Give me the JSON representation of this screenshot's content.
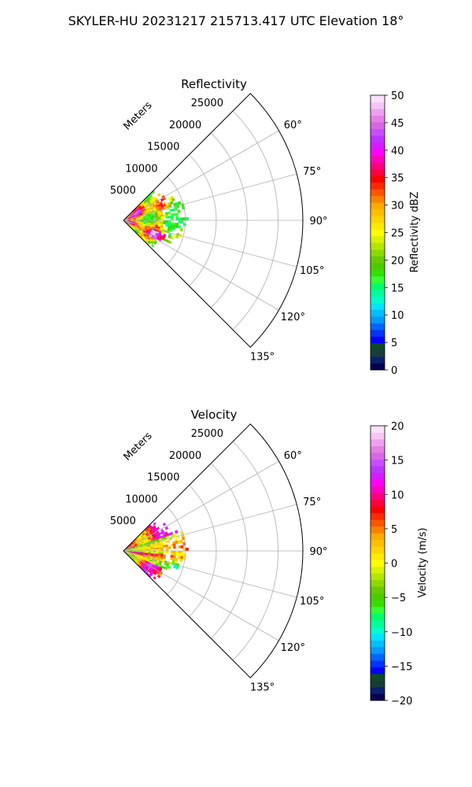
{
  "suptitle": "SKYLER-HU  20231217  215713.417 UTC Elevation 18°",
  "chart_data": [
    {
      "type": "heatmap",
      "title": "Reflectivity",
      "radial_label": "Meters",
      "radial_ticks": [
        "5000",
        "10000",
        "15000",
        "20000",
        "25000"
      ],
      "r_max": 29000,
      "angle_ticks": [
        "60°",
        "75°",
        "90°",
        "105°",
        "120°",
        "135°"
      ],
      "azimuth_range_deg": [
        45,
        135
      ],
      "data_extent_m": 10500,
      "grid": true,
      "colorbar": {
        "label": "Reflectivity dBZ",
        "min": 0,
        "max": 50,
        "ticks": [
          "0",
          "5",
          "10",
          "15",
          "20",
          "25",
          "30",
          "35",
          "40",
          "45",
          "50"
        ],
        "colors": [
          "#05004d",
          "#0a1f6e",
          "#173d3a",
          "#0c4b2a",
          "#0000ff",
          "#0033ff",
          "#0066ff",
          "#0099ff",
          "#00bfff",
          "#00e5ff",
          "#00ffcc",
          "#00ff99",
          "#00ff66",
          "#33ff33",
          "#33e000",
          "#4ccc00",
          "#66cc00",
          "#8cd900",
          "#b3e600",
          "#d9f200",
          "#ffff00",
          "#ffea00",
          "#ffd400",
          "#ffbf00",
          "#ffaa00",
          "#ff8000",
          "#ff5500",
          "#ff2a00",
          "#ff0000",
          "#ff0040",
          "#ff0080",
          "#ff00bf",
          "#ff00ff",
          "#d91aff",
          "#bf33ff",
          "#c94dff",
          "#d966e6",
          "#e680e6",
          "#f0a0f0",
          "#f7c6f7",
          "#fbe0fb"
        ]
      }
    },
    {
      "type": "heatmap",
      "title": "Velocity",
      "radial_label": "Meters",
      "radial_ticks": [
        "5000",
        "10000",
        "15000",
        "20000",
        "25000"
      ],
      "r_max": 29000,
      "angle_ticks": [
        "60°",
        "75°",
        "90°",
        "105°",
        "120°",
        "135°"
      ],
      "azimuth_range_deg": [
        45,
        135
      ],
      "data_extent_m": 10500,
      "grid": true,
      "colorbar": {
        "label": "Velocity (m/s)",
        "min": -20,
        "max": 20,
        "ticks": [
          "−20",
          "−15",
          "−10",
          "−5",
          "0",
          "5",
          "10",
          "15",
          "20"
        ],
        "colors": [
          "#05004d",
          "#0a1f6e",
          "#173d3a",
          "#0c4b2a",
          "#0000ff",
          "#0033ff",
          "#0066ff",
          "#0099ff",
          "#00bfff",
          "#00e5ff",
          "#00ffcc",
          "#00ff99",
          "#00ff66",
          "#33ff33",
          "#33e000",
          "#4ccc00",
          "#66cc00",
          "#8cd900",
          "#b3e600",
          "#d9f200",
          "#ffff00",
          "#ffea00",
          "#ffd400",
          "#ffbf00",
          "#ffaa00",
          "#ff8000",
          "#ff5500",
          "#ff2a00",
          "#ff0000",
          "#ff0040",
          "#ff0080",
          "#ff00bf",
          "#ff00ff",
          "#d91aff",
          "#bf33ff",
          "#c94dff",
          "#d966e6",
          "#e680e6",
          "#f0a0f0",
          "#f7c6f7",
          "#fbe0fb"
        ]
      }
    }
  ]
}
